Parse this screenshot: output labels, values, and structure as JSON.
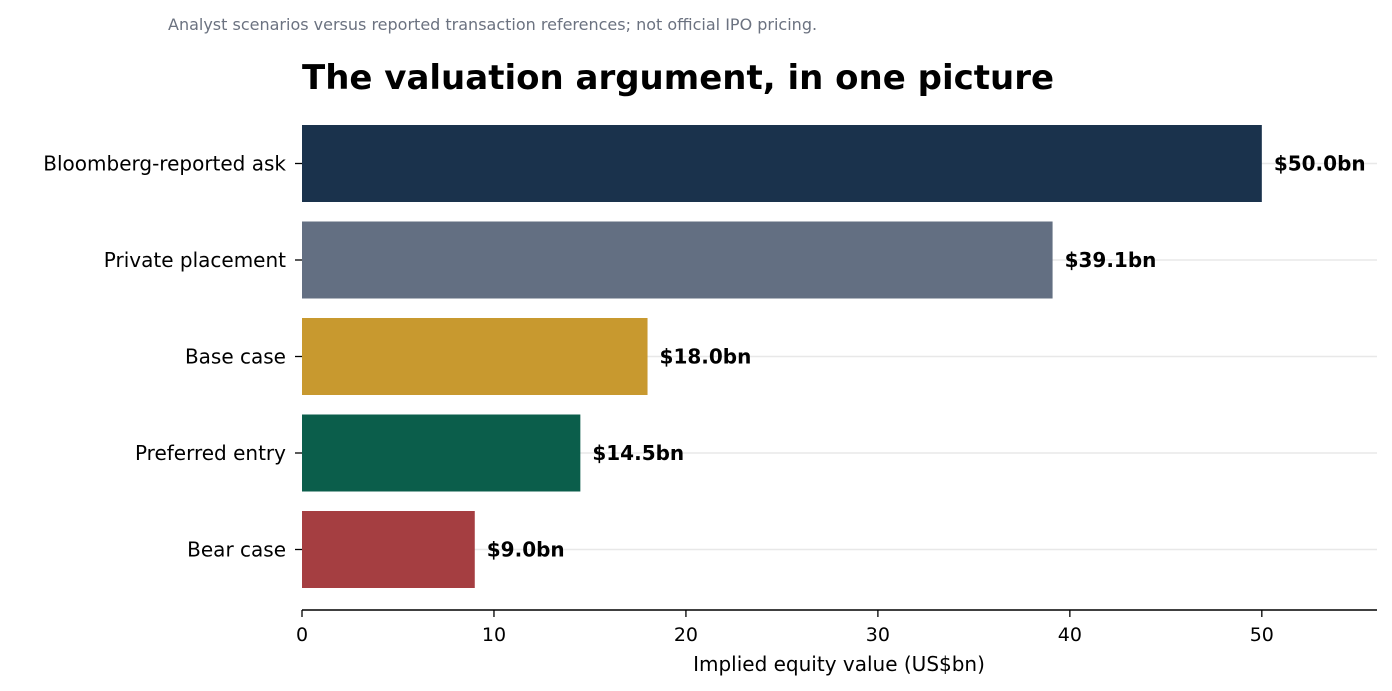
{
  "note": "Analyst scenarios versus reported transaction references; not official IPO pricing.",
  "chart_data": {
    "type": "bar",
    "orientation": "horizontal",
    "title": "The valuation argument, in one picture",
    "xlabel": "Implied equity value (US$bn)",
    "ylabel": "",
    "categories": [
      "Bloomberg-reported ask",
      "Private placement",
      "Base case",
      "Preferred entry",
      "Bear case"
    ],
    "values": [
      50.0,
      39.1,
      18.0,
      14.5,
      9.0
    ],
    "value_labels": [
      "$50.0bn",
      "$39.1bn",
      "$18.0bn",
      "$14.5bn",
      "$9.0bn"
    ],
    "colors": [
      "#1a324c",
      "#636f82",
      "#c8992f",
      "#0b5e4b",
      "#a53e41"
    ],
    "xlim": [
      0,
      56
    ],
    "xticks": [
      0,
      10,
      20,
      30,
      40,
      50
    ],
    "grid": "horizontal gridlines at category centres",
    "legend": "none"
  }
}
